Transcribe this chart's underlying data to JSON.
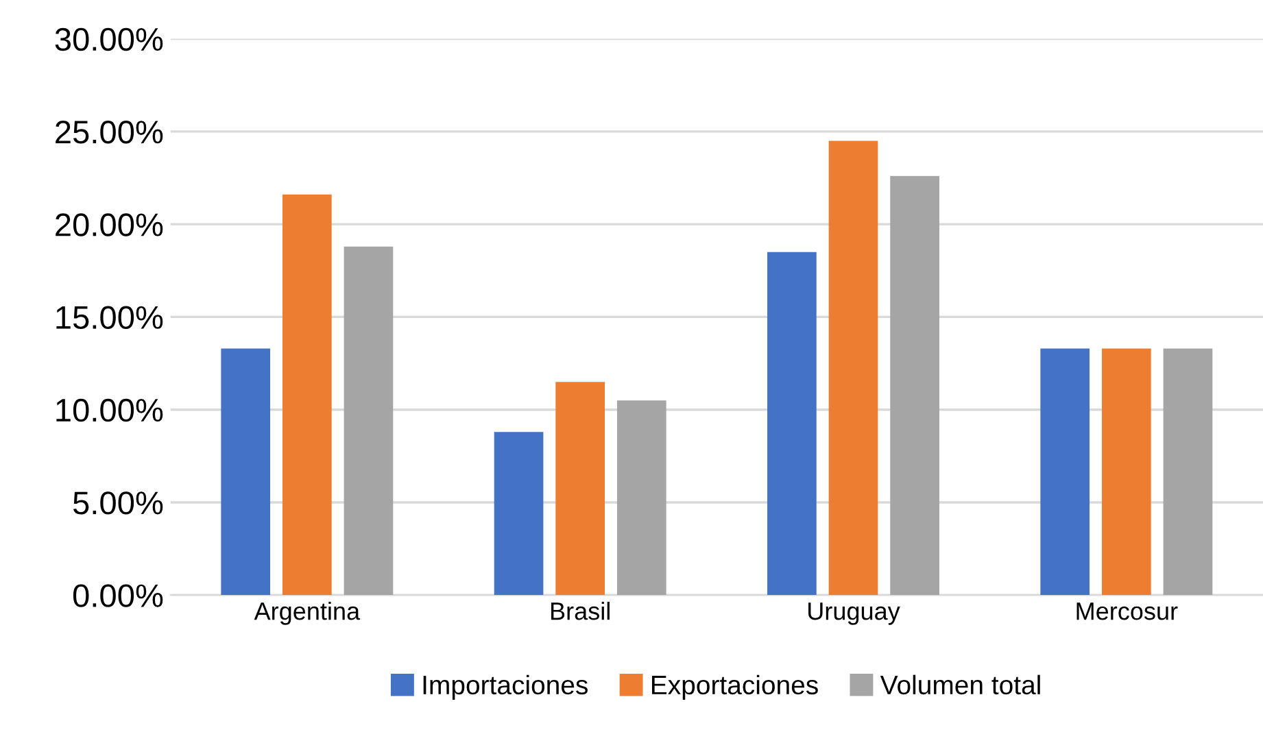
{
  "chart_data": {
    "type": "bar",
    "categories": [
      "Argentina",
      "Brasil",
      "Uruguay",
      "Mercosur"
    ],
    "series": [
      {
        "name": "Importaciones",
        "color": "#4472c4",
        "values": [
          13.3,
          8.8,
          18.5,
          13.3
        ]
      },
      {
        "name": "Exportaciones",
        "color": "#ed7d31",
        "values": [
          21.6,
          11.5,
          24.5,
          13.3
        ]
      },
      {
        "name": "Volumen total",
        "color": "#a5a5a5",
        "values": [
          18.8,
          10.5,
          22.6,
          13.3
        ]
      }
    ],
    "ylim": [
      0,
      30
    ],
    "yticks": [
      {
        "value": 0,
        "label": "0.00%"
      },
      {
        "value": 5,
        "label": "5.00%"
      },
      {
        "value": 10,
        "label": "10.00%"
      },
      {
        "value": 15,
        "label": "15.00%"
      },
      {
        "value": 20,
        "label": "20.00%"
      },
      {
        "value": 25,
        "label": "25.00%"
      },
      {
        "value": 30,
        "label": "30.00%"
      }
    ],
    "grid": "y",
    "legend": "bottom"
  }
}
